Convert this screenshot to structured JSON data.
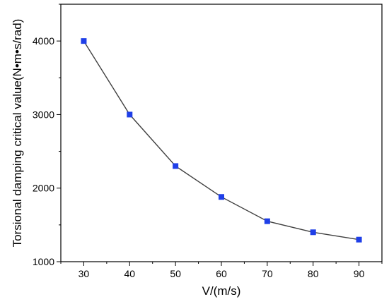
{
  "chart_data": {
    "type": "line",
    "title": "",
    "xlabel": "V/(m/s)",
    "ylabel": "Torsional damping critical value(N•m•s/rad)",
    "xlim": [
      25,
      95
    ],
    "ylim": [
      1000,
      4500
    ],
    "xticks": [
      30,
      40,
      50,
      60,
      70,
      80,
      90
    ],
    "yticks": [
      1000,
      2000,
      3000,
      4000
    ],
    "y_minor_ticks": [
      1500,
      2500,
      3500,
      4500
    ],
    "x_minor_ticks": [
      25,
      35,
      45,
      55,
      65,
      75,
      85,
      95
    ],
    "grid": false,
    "legend": "none",
    "series": [
      {
        "x": [
          30,
          40,
          50,
          60,
          70,
          80,
          90
        ],
        "values": [
          4000,
          3000,
          2300,
          1880,
          1550,
          1400,
          1300
        ],
        "line_color": "#404040",
        "marker_color": "#1f3fe8",
        "marker": "square"
      }
    ]
  }
}
